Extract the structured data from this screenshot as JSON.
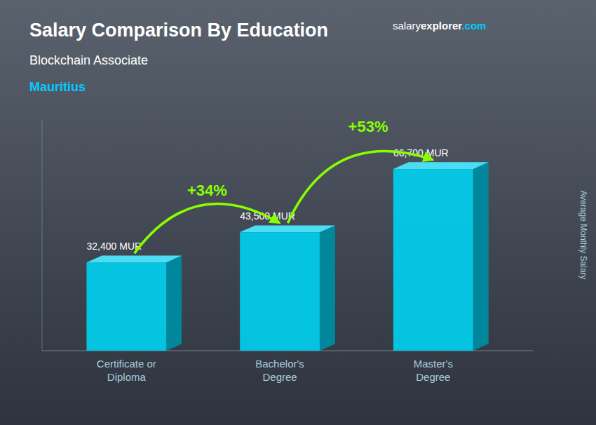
{
  "chart_data": {
    "type": "bar",
    "title": "Salary Comparison By Education",
    "subtitle": "Blockchain Associate",
    "ylabel": "Average Monthly Salary",
    "annotations": [
      "Mauritius",
      "+34%",
      "+53%",
      "salary",
      "explorer",
      ".com"
    ],
    "categories": [
      "Certificate or\nDiploma",
      "Bachelor's\nDegree",
      "Master's\nDegree"
    ],
    "values": [
      32400,
      43500,
      66700
    ],
    "value_labels": [
      "32,400 MUR",
      "43,500 MUR",
      "66,700 MUR"
    ],
    "color": "#00cfee",
    "ylim": [
      0,
      85000
    ],
    "yticks": [],
    "data_labels": true,
    "tick_labels": "x",
    "grid": false
  }
}
